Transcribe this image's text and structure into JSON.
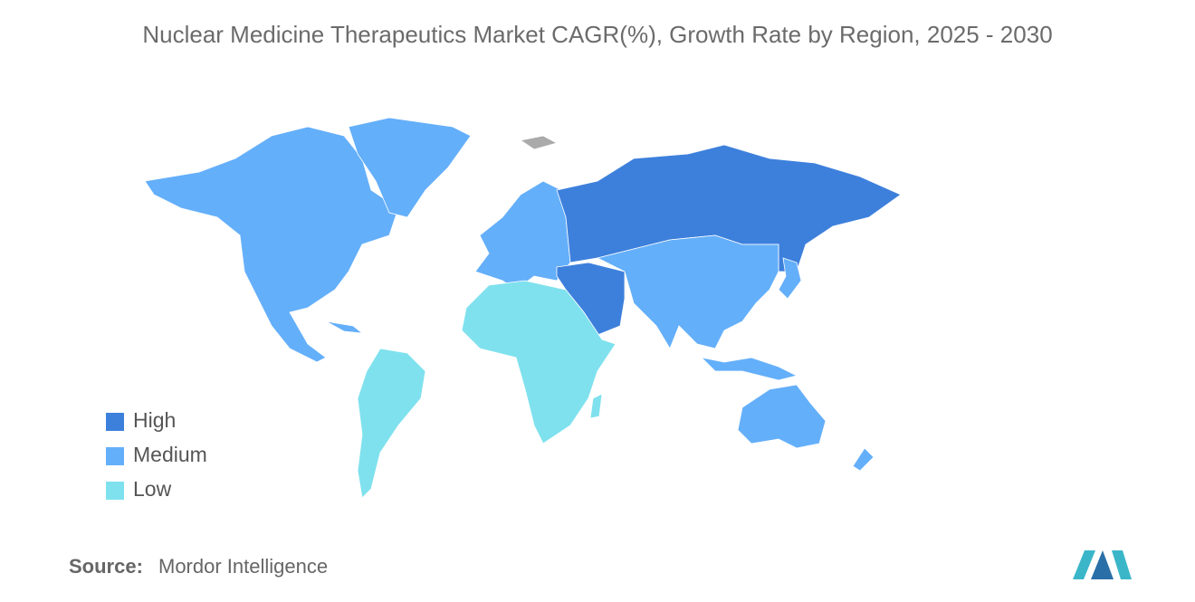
{
  "title": "Nuclear Medicine Therapeutics Market CAGR(%), Growth Rate  by Region, 2025 - 2030",
  "legend": {
    "items": [
      {
        "label": "High",
        "color": "#3d80dc"
      },
      {
        "label": "Medium",
        "color": "#64affa"
      },
      {
        "label": "Low",
        "color": "#7fe1ee"
      }
    ]
  },
  "source": {
    "label": "Source:",
    "text": "Mordor Intelligence"
  }
}
